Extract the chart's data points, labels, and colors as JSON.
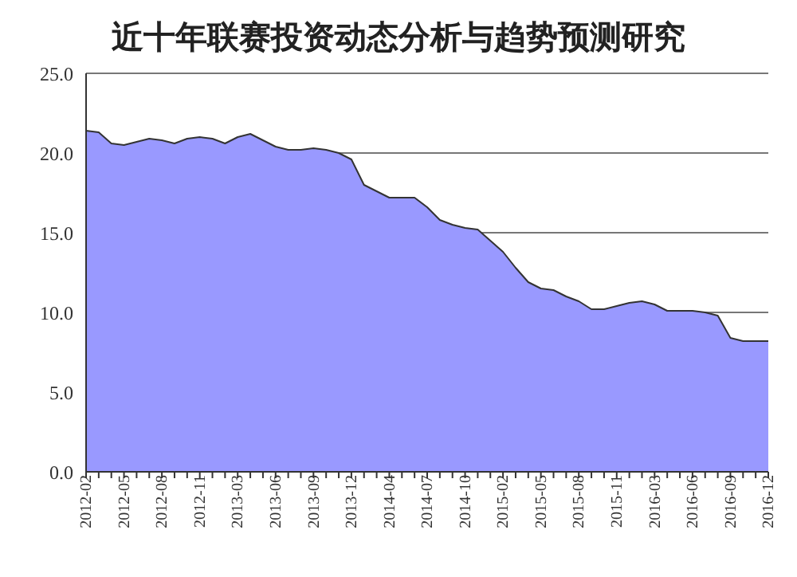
{
  "chart_data": {
    "type": "area",
    "title": "近十年联赛投资动态分析与趋势预测研究",
    "categories": [
      "2012-02",
      null,
      null,
      "2012-05",
      null,
      null,
      "2012-08",
      null,
      null,
      "2012-11",
      null,
      null,
      "2013-03",
      null,
      null,
      "2013-06",
      null,
      null,
      "2013-09",
      null,
      null,
      "2013-12",
      null,
      null,
      "2014-04",
      null,
      null,
      "2014-07",
      null,
      null,
      "2014-10",
      null,
      null,
      "2015-02",
      null,
      null,
      "2015-05",
      null,
      null,
      "2015-08",
      null,
      null,
      "2015-11",
      null,
      null,
      "2016-03",
      null,
      null,
      "2016-06",
      null,
      null,
      "2016-09",
      null,
      null,
      "2016-12"
    ],
    "series": [
      {
        "color": "#9999ff",
        "values": [
          21.4,
          21.3,
          20.6,
          20.5,
          20.7,
          20.9,
          20.8,
          20.6,
          20.9,
          21.0,
          20.9,
          20.6,
          21.0,
          21.2,
          20.8,
          20.4,
          20.2,
          20.2,
          20.3,
          20.2,
          20.0,
          19.6,
          18.0,
          17.6,
          17.2,
          17.2,
          17.2,
          16.6,
          15.8,
          15.5,
          15.3,
          15.2,
          14.5,
          13.8,
          12.8,
          11.9,
          11.5,
          11.4,
          11.0,
          10.7,
          10.2,
          10.2,
          10.4,
          10.6,
          10.7,
          10.5,
          10.1,
          10.1,
          10.1,
          10.0,
          9.8,
          8.4,
          8.2,
          8.2,
          8.2
        ]
      }
    ],
    "ylim": [
      0,
      25
    ],
    "yticks": [
      {
        "value": 0,
        "label": "0.0"
      },
      {
        "value": 5,
        "label": "5.0"
      },
      {
        "value": 10,
        "label": "10.0"
      },
      {
        "value": 15,
        "label": "15.0"
      },
      {
        "value": 20,
        "label": "20.0"
      },
      {
        "value": 25,
        "label": "25.0"
      }
    ],
    "grid": "y"
  }
}
